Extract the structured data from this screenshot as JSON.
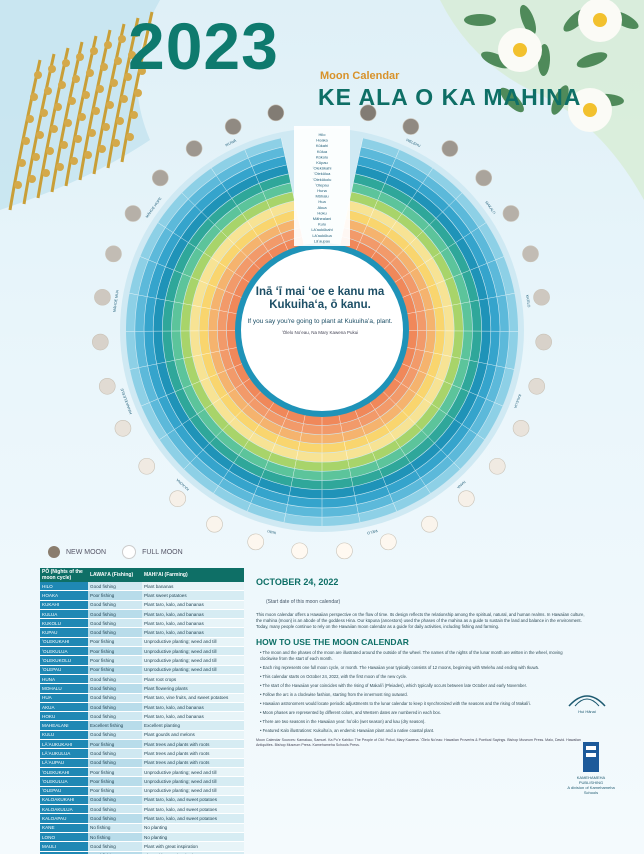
{
  "header": {
    "year": "2023",
    "subtitle": "Moon Calendar",
    "title": "KE ALA O KA MAHINA"
  },
  "center_quote": {
    "hawaiian": "Inā ʻī mai ʻoe e kanu ma Kukuihaʻa, ō kanu.",
    "english": "If you say you're going to plant at Kukuihaʻa, plant.",
    "source": "ʻŌlelo Noʻeau, Na Mary Kawena Pukui"
  },
  "legend": {
    "new_moon": "NEW MOON",
    "full_moon": "FULL MOON"
  },
  "table": {
    "headers": [
      "PŌ (Nights of the moon cycle)",
      "LAWAIʻA (Fishing)",
      "MAHIʻAI (Farming)"
    ],
    "rows": [
      [
        "HILO",
        "Good fishing",
        "Plant bananas"
      ],
      [
        "HOAKA",
        "Poor fishing",
        "Plant sweet potatoes"
      ],
      [
        "KUKAHI",
        "Good fishing",
        "Plant taro, kalo, and bananas"
      ],
      [
        "KULUA",
        "Good fishing",
        "Plant taro, kalo, and bananas"
      ],
      [
        "KUKOLU",
        "Good fishing",
        "Plant taro, kalo, and bananas"
      ],
      [
        "KUPAU",
        "Good fishing",
        "Plant taro, kalo, and bananas"
      ],
      [
        "ʻOLEKUKAHI",
        "Poor fishing",
        "Unproductive planting; weed and till"
      ],
      [
        "ʻOLEKULUA",
        "Poor fishing",
        "Unproductive planting; weed and till"
      ],
      [
        "ʻOLEKUKOLU",
        "Poor fishing",
        "Unproductive planting; weed and till"
      ],
      [
        "ʻOLEPAU",
        "Poor fishing",
        "Unproductive planting; weed and till"
      ],
      [
        "HUNA",
        "Good fishing",
        "Plant root crops"
      ],
      [
        "MOHALU",
        "Good fishing",
        "Plant flowering plants"
      ],
      [
        "HUA",
        "Good fishing",
        "Plant taro, vine fruits, and sweet potatoes"
      ],
      [
        "AKUA",
        "Good fishing",
        "Plant taro, kalo, and bananas"
      ],
      [
        "HOKU",
        "Good fishing",
        "Plant taro, kalo, and bananas"
      ],
      [
        "MAHEALANI",
        "Excellent fishing",
        "Excellent planting"
      ],
      [
        "KULU",
        "Good fishing",
        "Plant gourds and melons"
      ],
      [
        "LĀʻAUKUKAHI",
        "Poor fishing",
        "Plant trees and plants with roots"
      ],
      [
        "LĀʻAUKULUA",
        "Good fishing",
        "Plant trees and plants with roots"
      ],
      [
        "LĀʻAUPAU",
        "Good fishing",
        "Plant trees and plants with roots"
      ],
      [
        "ʻOLEKUKAHI",
        "Poor fishing",
        "Unproductive planting; weed and till"
      ],
      [
        "ʻOLEKULUA",
        "Poor fishing",
        "Unproductive planting; weed and till"
      ],
      [
        "ʻOLEPAU",
        "Poor fishing",
        "Unproductive planting; weed and till"
      ],
      [
        "KALOAKUKAHI",
        "Good fishing",
        "Plant taro, kalo, and sweet potatoes"
      ],
      [
        "KALOAKULUA",
        "Good fishing",
        "Plant taro, kalo, and sweet potatoes"
      ],
      [
        "KALOAPAU",
        "Good fishing",
        "Plant taro, kalo, and sweet potatoes"
      ],
      [
        "KANE",
        "No fishing",
        "No planting"
      ],
      [
        "LONO",
        "No fishing",
        "No planting"
      ],
      [
        "MAULI",
        "Good fishing",
        "Plant with great inspiration"
      ],
      [
        "MUKU",
        "Good fishing",
        "Plant with great inspiration"
      ]
    ]
  },
  "right_column": {
    "date_heading": "OCTOBER 24, 2022",
    "date_sub": "(Start date of this moon calendar)",
    "intro": "This moon calendar offers a Hawaiian perspective on the flow of time. Its design reflects the relationship among the spiritual, natural, and human realms. In Hawaiian culture, the mahina (moon) is an abode of the goddess Hina. Our kūpuna (ancestors) used the phases of the mahina as a guide to sustain the land and balance in the environment. Today, many people continue to rely on the Hawaiian moon calendar as a guide for daily activities, including fishing and farming.",
    "howto_heading": "HOW TO USE THE MOON CALENDAR",
    "bullets": [
      "The moon and the phases of the moon are illustrated around the outside of the wheel. The names of the nights of the lunar month are written in the wheel, moving clockwise from the start of each month.",
      "Each ring represents one full moon cycle, or month. The Hawaiian year typically consists of 12 moons, beginning with Welehu and ending with Ikuwā.",
      "This calendar starts on October 24, 2022, with the first moon of the new cycle.",
      "The start of the Hawaiian year coincides with the rising of Makaliʻi (Pleiades), which typically occurs between late October and early November.",
      "Follow the arc in a clockwise fashion, starting from the innermost ring outward.",
      "Hawaiian astronomers would locate periodic adjustments to the lunar calendar to keep it synchronized with the seasons and the rising of Makaliʻi.",
      "Moon phases are represented by different colors, and Western dates are numbered in each box.",
      "There are two seasons in the Hawaiian year: hoʻoilo (wet season) and kau (dry season).",
      "Featured Kalo illustrations: Kukuihaʻa, an endemic Hawaiian plant and a native coastal plant."
    ],
    "credits": "Moon Calendar Sources: Kamakau, Samuel. Ka Poʻe Kahiko: The People of Old. Pukui, Mary Kawena. ʻŌlelo Noʻeau: Hawaiian Proverbs & Poetical Sayings. Bishop Museum Press. Malo, David. Hawaiian Antiquities. Bishop Museum Press. Kamehameha Schools Press."
  },
  "logos": {
    "logo1": "Hui Hānai",
    "logo2_name": "KAMEHAMEHA PUBLISHING",
    "logo2_sub": "A division of Kamehameha Schools"
  },
  "wheel_labels": {
    "month_names": [
      "WELEHU",
      "MAKALIʻI",
      "KAʻELO",
      "KAULUA",
      "NANA",
      "WELO",
      "IKIIKI",
      "KAʻAONA",
      "HINAIAʻELEʻELE",
      "MĀHOE MUA",
      "MĀHOE HOPE",
      "IKUWĀ"
    ],
    "night_names": [
      "Hilo",
      "Hoaka",
      "Kūkahi",
      "Kūlua",
      "Kūkolu",
      "Kūpau",
      "ʻOlekūkahi",
      "ʻOlekūlua",
      "ʻOlekūkolu",
      "ʻOlepau",
      "Huna",
      "Mōhalu",
      "Hua",
      "Akua",
      "Hoku",
      "Māhealani",
      "Kulu",
      "Lāʻaukūkahi",
      "Lāʻaukūlua",
      "Lāʻaupau"
    ]
  },
  "colors": {
    "ring_palette": [
      "#f0885a",
      "#f29a6a",
      "#f5b36e",
      "#f9d56e",
      "#f7e394",
      "#a8d46a",
      "#5cc49b",
      "#2fa79a",
      "#1f93b8",
      "#35a4cc",
      "#5cb9da",
      "#8dd0e6"
    ],
    "title_green": "#0e7a6e",
    "accent_orange": "#d8922a"
  }
}
